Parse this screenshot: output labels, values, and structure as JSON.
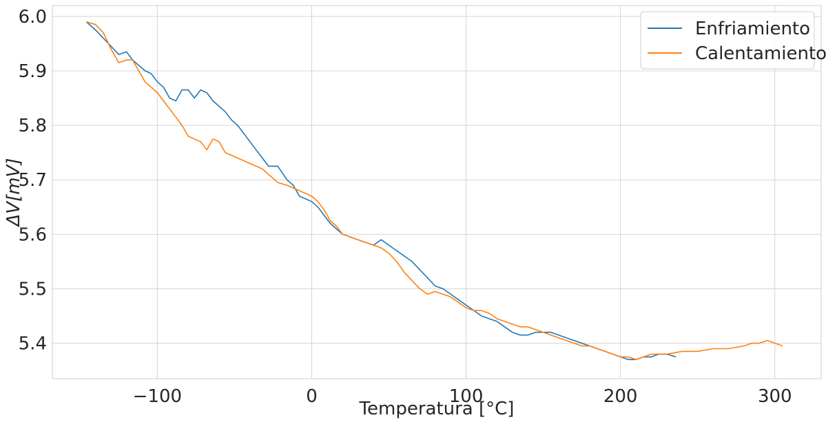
{
  "chart_data": {
    "type": "line",
    "xlabel": "Temperatura [°C]",
    "ylabel": "ΔV[mV]",
    "xlim": [
      -168,
      330
    ],
    "ylim": [
      5.335,
      6.02
    ],
    "xticks": [
      {
        "value": -100,
        "label": "−100"
      },
      {
        "value": 0,
        "label": "0"
      },
      {
        "value": 100,
        "label": "100"
      },
      {
        "value": 200,
        "label": "200"
      },
      {
        "value": 300,
        "label": "300"
      }
    ],
    "yticks": [
      {
        "value": 5.4,
        "label": "5.4"
      },
      {
        "value": 5.5,
        "label": "5.5"
      },
      {
        "value": 5.6,
        "label": "5.6"
      },
      {
        "value": 5.7,
        "label": "5.7"
      },
      {
        "value": 5.8,
        "label": "5.8"
      },
      {
        "value": 5.9,
        "label": "5.9"
      },
      {
        "value": 6.0,
        "label": "6.0"
      }
    ],
    "grid": true,
    "legend_position": "top-right",
    "series": [
      {
        "name": "Enfriamiento",
        "color": "#1f77b4",
        "x": [
          -146,
          -140,
          -135,
          -130,
          -125,
          -120,
          -116,
          -112,
          -108,
          -104,
          -100,
          -96,
          -92,
          -88,
          -84,
          -80,
          -76,
          -72,
          -68,
          -64,
          -60,
          -56,
          -52,
          -48,
          -44,
          -40,
          -36,
          -32,
          -28,
          -22,
          -16,
          -12,
          -8,
          -4,
          0,
          4,
          8,
          12,
          16,
          20,
          25,
          30,
          35,
          40,
          45,
          50,
          55,
          60,
          65,
          70,
          75,
          80,
          85,
          90,
          95,
          100,
          105,
          110,
          115,
          120,
          125,
          130,
          135,
          140,
          145,
          150,
          155,
          160,
          165,
          170,
          175,
          180,
          185,
          190,
          195,
          200,
          205,
          210,
          215,
          220,
          225,
          230,
          236
        ],
        "y": [
          5.99,
          5.975,
          5.96,
          5.945,
          5.93,
          5.935,
          5.92,
          5.91,
          5.9,
          5.895,
          5.88,
          5.87,
          5.85,
          5.845,
          5.865,
          5.865,
          5.85,
          5.865,
          5.86,
          5.845,
          5.835,
          5.825,
          5.81,
          5.8,
          5.785,
          5.77,
          5.755,
          5.74,
          5.725,
          5.725,
          5.7,
          5.69,
          5.67,
          5.665,
          5.66,
          5.65,
          5.635,
          5.62,
          5.61,
          5.6,
          5.595,
          5.59,
          5.585,
          5.58,
          5.59,
          5.58,
          5.57,
          5.56,
          5.55,
          5.535,
          5.52,
          5.505,
          5.5,
          5.49,
          5.48,
          5.47,
          5.46,
          5.45,
          5.445,
          5.44,
          5.43,
          5.42,
          5.415,
          5.415,
          5.42,
          5.42,
          5.42,
          5.415,
          5.41,
          5.405,
          5.4,
          5.395,
          5.39,
          5.385,
          5.38,
          5.375,
          5.37,
          5.37,
          5.375,
          5.375,
          5.38,
          5.38,
          5.375
        ]
      },
      {
        "name": "Calentamiento",
        "color": "#ff7f0e",
        "x": [
          -146,
          -140,
          -135,
          -130,
          -125,
          -120,
          -116,
          -112,
          -108,
          -104,
          -100,
          -96,
          -92,
          -88,
          -84,
          -80,
          -76,
          -72,
          -68,
          -64,
          -60,
          -56,
          -52,
          -48,
          -44,
          -40,
          -36,
          -32,
          -28,
          -22,
          -16,
          -12,
          -8,
          -4,
          0,
          4,
          8,
          12,
          16,
          20,
          25,
          30,
          35,
          40,
          45,
          50,
          55,
          60,
          65,
          70,
          75,
          80,
          85,
          90,
          95,
          100,
          105,
          110,
          115,
          120,
          125,
          130,
          135,
          140,
          145,
          150,
          155,
          160,
          165,
          170,
          175,
          180,
          185,
          190,
          195,
          200,
          205,
          210,
          215,
          220,
          225,
          230,
          240,
          250,
          260,
          270,
          280,
          285,
          290,
          295,
          300,
          305
        ],
        "y": [
          5.99,
          5.985,
          5.97,
          5.94,
          5.915,
          5.92,
          5.92,
          5.9,
          5.88,
          5.87,
          5.86,
          5.845,
          5.83,
          5.815,
          5.8,
          5.78,
          5.775,
          5.77,
          5.755,
          5.775,
          5.77,
          5.75,
          5.745,
          5.74,
          5.735,
          5.73,
          5.725,
          5.72,
          5.71,
          5.695,
          5.69,
          5.685,
          5.68,
          5.675,
          5.67,
          5.66,
          5.645,
          5.625,
          5.615,
          5.6,
          5.595,
          5.59,
          5.585,
          5.58,
          5.575,
          5.565,
          5.55,
          5.53,
          5.515,
          5.5,
          5.49,
          5.495,
          5.49,
          5.485,
          5.475,
          5.465,
          5.46,
          5.46,
          5.455,
          5.445,
          5.44,
          5.435,
          5.43,
          5.43,
          5.425,
          5.42,
          5.415,
          5.41,
          5.405,
          5.4,
          5.395,
          5.395,
          5.39,
          5.385,
          5.38,
          5.375,
          5.375,
          5.37,
          5.375,
          5.38,
          5.38,
          5.38,
          5.385,
          5.385,
          5.39,
          5.39,
          5.395,
          5.4,
          5.4,
          5.405,
          5.4,
          5.395
        ]
      }
    ]
  }
}
